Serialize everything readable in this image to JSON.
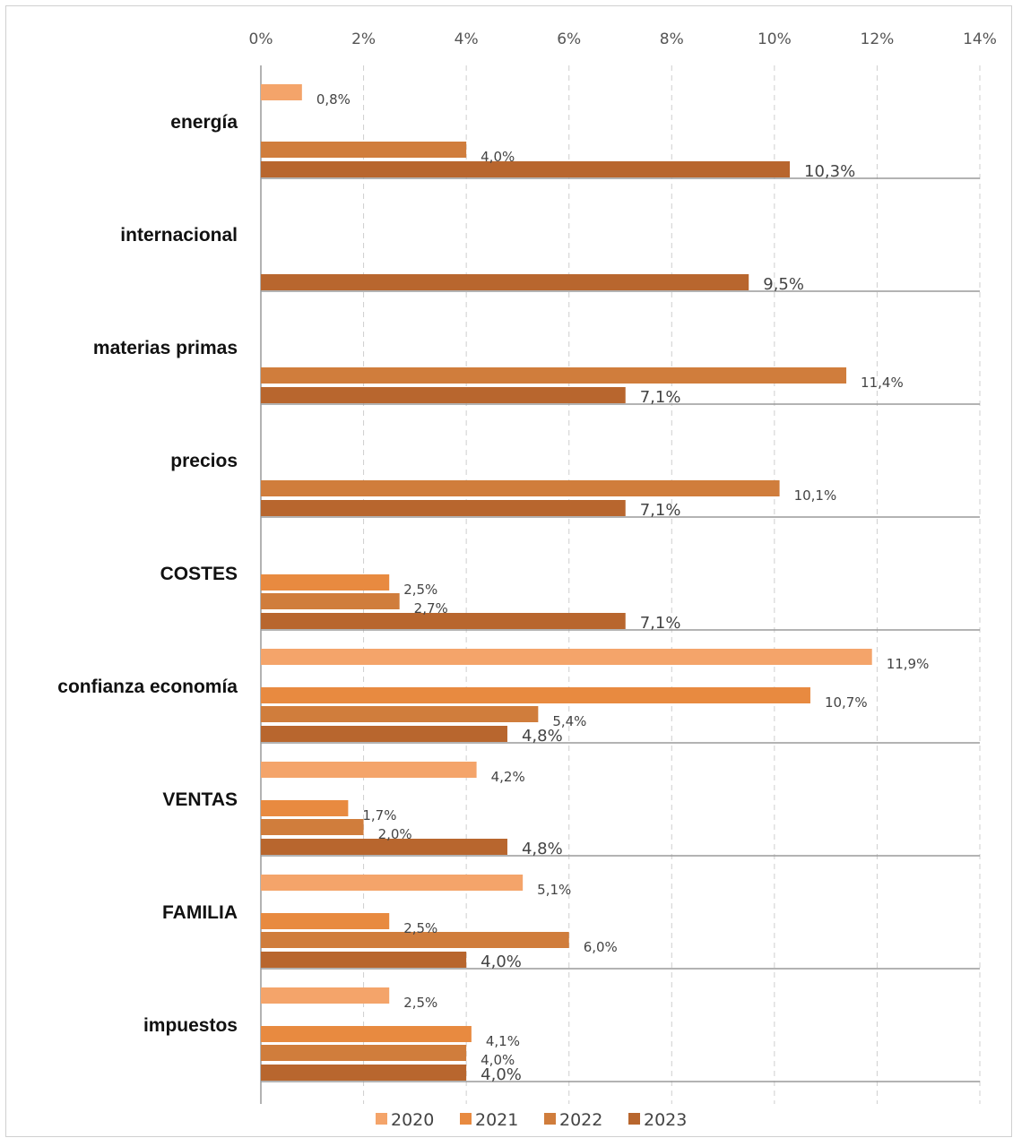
{
  "chart_data": {
    "type": "bar",
    "orientation": "horizontal",
    "title": "",
    "xlabel": "",
    "ylabel": "",
    "xlim": [
      0,
      14
    ],
    "x_ticks": [
      "0%",
      "2%",
      "4%",
      "6%",
      "8%",
      "10%",
      "12%",
      "14%"
    ],
    "x_axis_position": "top",
    "grid": "vertical dashed",
    "legend_position": "bottom",
    "categories": [
      "energía",
      "internacional",
      "materias primas",
      "precios",
      "COSTES",
      "confianza economía",
      "VENTAS",
      "FAMILIA",
      "impuestos"
    ],
    "series": [
      {
        "name": "2020",
        "color": "#f4a46a",
        "values": [
          0.8,
          null,
          null,
          null,
          null,
          11.9,
          4.2,
          5.1,
          2.5
        ],
        "labels": [
          "0,8%",
          "",
          "",
          "",
          "",
          "11,9%",
          "4,2%",
          "5,1%",
          "2,5%"
        ]
      },
      {
        "name": "2021",
        "color": "#e88a40",
        "values": [
          null,
          null,
          null,
          null,
          2.5,
          10.7,
          1.7,
          2.5,
          4.1
        ],
        "labels": [
          "",
          "",
          "",
          "",
          "2,5%",
          "10,7%",
          "1,7%",
          "2,5%",
          "4,1%"
        ]
      },
      {
        "name": "2022",
        "color": "#d07d3c",
        "values": [
          4.0,
          null,
          11.4,
          10.1,
          2.7,
          5.4,
          2.0,
          6.0,
          4.0
        ],
        "labels": [
          "4,0%",
          "",
          "11,4%",
          "10,1%",
          "2,7%",
          "5,4%",
          "2,0%",
          "6,0%",
          "4,0%"
        ]
      },
      {
        "name": "2023",
        "color": "#b8662e",
        "values": [
          10.3,
          9.5,
          7.1,
          7.1,
          7.1,
          4.8,
          4.8,
          4.0,
          4.0
        ],
        "labels": [
          "10,3%",
          "9,5%",
          "7,1%",
          "7,1%",
          "7,1%",
          "4,8%",
          "4,8%",
          "4,0%",
          "4,0%"
        ]
      }
    ]
  }
}
